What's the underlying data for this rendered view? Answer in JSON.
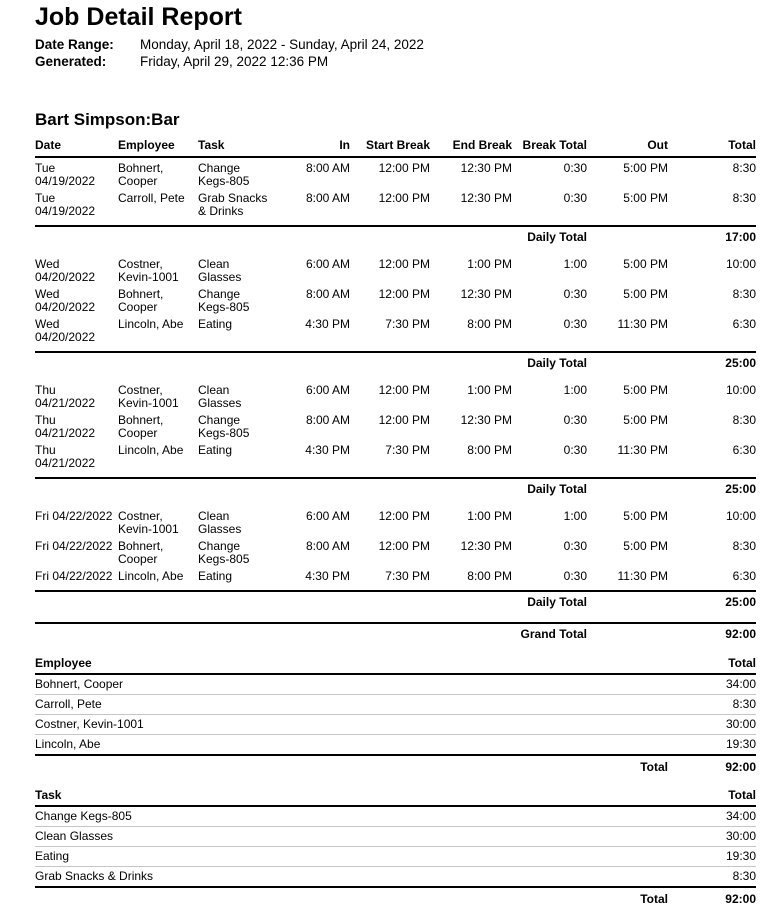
{
  "report": {
    "title": "Job Detail Report",
    "date_range_label": "Date Range:",
    "date_range": "Monday, April 18, 2022 - Sunday, April 24, 2022",
    "generated_label": "Generated:",
    "generated": "Friday, April 29, 2022 12:36 PM",
    "section_title": "Bart Simpson:Bar"
  },
  "detail_table": {
    "headers": [
      "Date",
      "Employee",
      "Task",
      "In",
      "Start Break",
      "End Break",
      "Break Total",
      "Out",
      "Total"
    ],
    "daily_total_label": "Daily Total",
    "grand_total_label": "Grand Total",
    "grand_total": "92:00",
    "groups": [
      {
        "daily_total": "17:00",
        "rows": [
          {
            "date": "Tue\n04/19/2022",
            "employee": "Bohnert,\nCooper",
            "task": "Change\nKegs-805",
            "in": "8:00 AM",
            "start_break": "12:00 PM",
            "end_break": "12:30 PM",
            "break_total": "0:30",
            "out": "5:00 PM",
            "total": "8:30"
          },
          {
            "date": "Tue\n04/19/2022",
            "employee": "Carroll, Pete",
            "task": "Grab Snacks\n& Drinks",
            "in": "8:00 AM",
            "start_break": "12:00 PM",
            "end_break": "12:30 PM",
            "break_total": "0:30",
            "out": "5:00 PM",
            "total": "8:30"
          }
        ]
      },
      {
        "daily_total": "25:00",
        "rows": [
          {
            "date": "Wed\n04/20/2022",
            "employee": "Costner,\nKevin-1001",
            "task": "Clean\nGlasses",
            "in": "6:00 AM",
            "start_break": "12:00 PM",
            "end_break": "1:00 PM",
            "break_total": "1:00",
            "out": "5:00 PM",
            "total": "10:00"
          },
          {
            "date": "Wed\n04/20/2022",
            "employee": "Bohnert,\nCooper",
            "task": "Change\nKegs-805",
            "in": "8:00 AM",
            "start_break": "12:00 PM",
            "end_break": "12:30 PM",
            "break_total": "0:30",
            "out": "5:00 PM",
            "total": "8:30"
          },
          {
            "date": "Wed\n04/20/2022",
            "employee": "Lincoln, Abe",
            "task": "Eating",
            "in": "4:30 PM",
            "start_break": "7:30 PM",
            "end_break": "8:00 PM",
            "break_total": "0:30",
            "out": "11:30 PM",
            "total": "6:30"
          }
        ]
      },
      {
        "daily_total": "25:00",
        "rows": [
          {
            "date": "Thu\n04/21/2022",
            "employee": "Costner,\nKevin-1001",
            "task": "Clean\nGlasses",
            "in": "6:00 AM",
            "start_break": "12:00 PM",
            "end_break": "1:00 PM",
            "break_total": "1:00",
            "out": "5:00 PM",
            "total": "10:00"
          },
          {
            "date": "Thu\n04/21/2022",
            "employee": "Bohnert,\nCooper",
            "task": "Change\nKegs-805",
            "in": "8:00 AM",
            "start_break": "12:00 PM",
            "end_break": "12:30 PM",
            "break_total": "0:30",
            "out": "5:00 PM",
            "total": "8:30"
          },
          {
            "date": "Thu\n04/21/2022",
            "employee": "Lincoln, Abe",
            "task": "Eating",
            "in": "4:30 PM",
            "start_break": "7:30 PM",
            "end_break": "8:00 PM",
            "break_total": "0:30",
            "out": "11:30 PM",
            "total": "6:30"
          }
        ]
      },
      {
        "daily_total": "25:00",
        "rows": [
          {
            "date": "Fri 04/22/2022",
            "employee": "Costner,\nKevin-1001",
            "task": "Clean\nGlasses",
            "in": "6:00 AM",
            "start_break": "12:00 PM",
            "end_break": "1:00 PM",
            "break_total": "1:00",
            "out": "5:00 PM",
            "total": "10:00"
          },
          {
            "date": "Fri 04/22/2022",
            "employee": "Bohnert,\nCooper",
            "task": "Change\nKegs-805",
            "in": "8:00 AM",
            "start_break": "12:00 PM",
            "end_break": "12:30 PM",
            "break_total": "0:30",
            "out": "5:00 PM",
            "total": "8:30"
          },
          {
            "date": "Fri 04/22/2022",
            "employee": "Lincoln, Abe",
            "task": "Eating",
            "in": "4:30 PM",
            "start_break": "7:30 PM",
            "end_break": "8:00 PM",
            "break_total": "0:30",
            "out": "11:30 PM",
            "total": "6:30"
          }
        ]
      }
    ]
  },
  "employee_summary": {
    "header": "Employee",
    "total_header": "Total",
    "rows": [
      {
        "name": "Bohnert, Cooper",
        "total": "34:00"
      },
      {
        "name": "Carroll, Pete",
        "total": "8:30"
      },
      {
        "name": "Costner, Kevin-1001",
        "total": "30:00"
      },
      {
        "name": "Lincoln, Abe",
        "total": "19:30"
      }
    ],
    "total_label": "Total",
    "total": "92:00"
  },
  "task_summary": {
    "header": "Task",
    "total_header": "Total",
    "rows": [
      {
        "name": "Change Kegs-805",
        "total": "34:00"
      },
      {
        "name": "Clean Glasses",
        "total": "30:00"
      },
      {
        "name": "Eating",
        "total": "19:30"
      },
      {
        "name": "Grab Snacks & Drinks",
        "total": "8:30"
      }
    ],
    "total_label": "Total",
    "total": "92:00"
  }
}
